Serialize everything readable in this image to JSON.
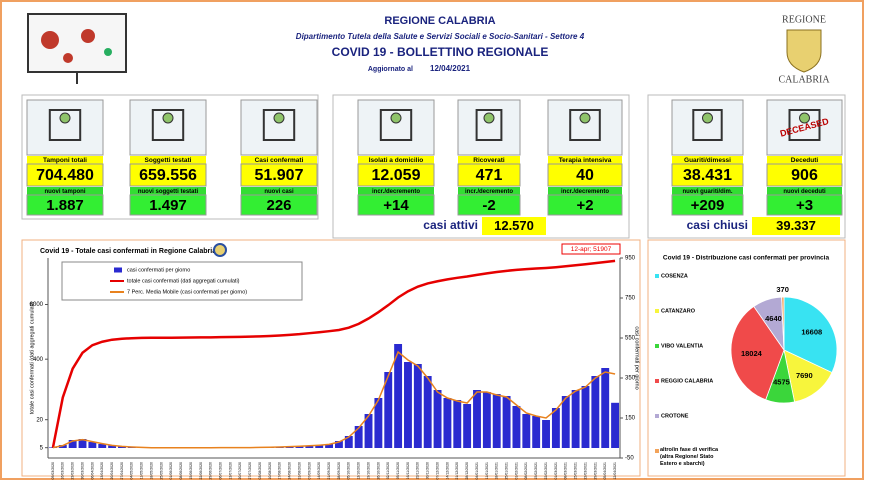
{
  "header": {
    "region": "REGIONE CALABRIA",
    "department": "Dipartimento Tutela della Salute e Servizi Sociali e Socio-Sanitari - Settore 4",
    "title": "COVID 19 - BOLLETTINO REGIONALE",
    "updated_label": "Aggiornato al",
    "updated_date": "12/04/2021",
    "logo_top": "REGIONE",
    "logo_bottom": "CALABRIA"
  },
  "tiles": [
    {
      "label": "Tamponi totali",
      "value": "704.480",
      "sub_label": "nuovi tamponi",
      "sub_value": "1.887"
    },
    {
      "label": "Soggetti testati",
      "value": "659.556",
      "sub_label": "nuovi soggetti testati",
      "sub_value": "1.497"
    },
    {
      "label": "Casi confermati",
      "value": "51.907",
      "sub_label": "nuovi casi",
      "sub_value": "226"
    },
    {
      "label": "Isolati a domicilio",
      "value": "12.059",
      "sub_label": "incr./decremento",
      "sub_value": "+14"
    },
    {
      "label": "Ricoverati",
      "value": "471",
      "sub_label": "incr./decremento",
      "sub_value": "-2"
    },
    {
      "label": "Terapia intensiva",
      "value": "40",
      "sub_label": "incr./decremento",
      "sub_value": "+2"
    },
    {
      "label": "Guariti/dimessi",
      "value": "38.431",
      "sub_label": "nuovi guariti/dim.",
      "sub_value": "+209"
    },
    {
      "label": "Deceduti",
      "value": "906",
      "sub_label": "nuovi deceduti",
      "sub_value": "+3",
      "icon_text": "DECEASED"
    }
  ],
  "summaries": [
    {
      "label": "casi attivi",
      "value": "12.570"
    },
    {
      "label": "casi chiusi",
      "value": "39.337"
    }
  ],
  "chart_data": [
    {
      "type": "combo",
      "title": "Covid 19 - Totale casi confermati in Regione Calabria",
      "y_label": "totale casi confermati (dati aggregati cumulati)",
      "y2_label": "casi confermati per giorno",
      "annotation": "12-apr; 51907",
      "categories": [
        "09/03/2020",
        "16/03/2020",
        "23/03/2020",
        "30/03/2020",
        "06/04/2020",
        "13/04/2020",
        "20/04/2020",
        "27/04/2020",
        "04/05/2020",
        "11/05/2020",
        "18/05/2020",
        "25/05/2020",
        "01/06/2020",
        "08/06/2020",
        "15/06/2020",
        "22/06/2020",
        "29/06/2020",
        "06/07/2020",
        "13/07/2020",
        "20/07/2020",
        "27/07/2020",
        "03/08/2020",
        "10/08/2020",
        "17/08/2020",
        "24/08/2020",
        "31/08/2020",
        "07/09/2020",
        "14/09/2020",
        "21/09/2020",
        "28/09/2020",
        "05/10/2020",
        "12/10/2020",
        "19/10/2020",
        "26/10/2020",
        "02/11/2020",
        "09/11/2020",
        "16/11/2020",
        "23/11/2020",
        "30/11/2020",
        "07/12/2020",
        "14/12/2020",
        "21/12/2020",
        "28/12/2020",
        "04/01/2021",
        "11/01/2021",
        "18/01/2021",
        "25/01/2021",
        "01/02/2021",
        "08/02/2021",
        "15/02/2021",
        "22/02/2021",
        "01/03/2021",
        "08/03/2021",
        "15/03/2021",
        "22/03/2021",
        "29/03/2021",
        "05/04/2021",
        "12/04/2021"
      ],
      "series": [
        {
          "name": "casi confermati per giorno",
          "type": "bar",
          "axis": "y2",
          "color": "#2a2ad0",
          "values": [
            3,
            15,
            40,
            45,
            30,
            20,
            12,
            8,
            4,
            3,
            1,
            1,
            1,
            1,
            1,
            1,
            1,
            2,
            2,
            2,
            2,
            3,
            4,
            6,
            8,
            10,
            12,
            15,
            20,
            35,
            60,
            110,
            170,
            250,
            380,
            520,
            430,
            420,
            360,
            290,
            250,
            240,
            220,
            290,
            280,
            270,
            260,
            210,
            170,
            160,
            140,
            200,
            260,
            290,
            310,
            360,
            400,
            226
          ]
        },
        {
          "name": "totale casi confermati (dati aggregati cumulati)",
          "type": "line",
          "axis": "y",
          "color": "#e60000",
          "values": [
            5,
            60,
            250,
            550,
            800,
            950,
            1050,
            1100,
            1130,
            1150,
            1155,
            1158,
            1160,
            1165,
            1170,
            1175,
            1180,
            1190,
            1200,
            1210,
            1220,
            1240,
            1260,
            1290,
            1330,
            1380,
            1450,
            1520,
            1600,
            1700,
            1900,
            2300,
            3000,
            4100,
            5800,
            8500,
            11500,
            14500,
            17000,
            19000,
            20800,
            22500,
            24000,
            26000,
            28000,
            30000,
            31800,
            33300,
            34500,
            35600,
            36600,
            38000,
            39800,
            41800,
            44000,
            46500,
            49300,
            51907
          ]
        },
        {
          "name": "7 Perc. Media Mobile (casi confermati per giorno)",
          "type": "line",
          "axis": "y2",
          "color": "#e8821e",
          "values": [
            2,
            12,
            35,
            42,
            32,
            22,
            13,
            8,
            5,
            3,
            1,
            1,
            1,
            1,
            1,
            1,
            1,
            2,
            2,
            2,
            2,
            3,
            4,
            5,
            7,
            9,
            11,
            14,
            18,
            30,
            55,
            100,
            160,
            240,
            360,
            480,
            440,
            410,
            350,
            280,
            250,
            235,
            225,
            280,
            280,
            265,
            255,
            215,
            175,
            160,
            150,
            190,
            250,
            285,
            305,
            350,
            380,
            370
          ]
        }
      ],
      "log_scale": true,
      "ylim": [
        3,
        60000
      ],
      "yticks": [
        5,
        20,
        400,
        6000
      ],
      "y2lim": [
        -50,
        950
      ],
      "y2ticks": [
        -50,
        150,
        350,
        550,
        750,
        950
      ]
    },
    {
      "type": "pie",
      "title": "Covid 19 - Distribuzione casi confermati per provincia",
      "categories": [
        "COSENZA",
        "CATANZARO",
        "VIBO VALENTIA",
        "REGGIO CALABRIA",
        "CROTONE",
        "altro/in fase di verifica (altra Regione/ Stato Estero e sbarchi)"
      ],
      "values": [
        16608,
        7690,
        4575,
        18024,
        4640,
        370
      ],
      "colors": [
        "#38e3f2",
        "#f7f53c",
        "#3bd63b",
        "#f04a4a",
        "#b3a9d4",
        "#f2a35a"
      ]
    }
  ]
}
